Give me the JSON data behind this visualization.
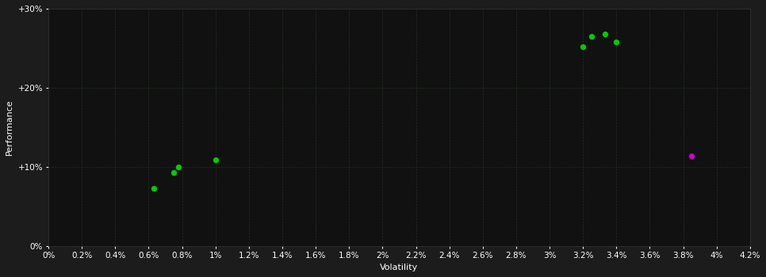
{
  "background_color": "#1c1c1c",
  "plot_bg_color": "#111111",
  "text_color": "#ffffff",
  "xlabel": "Volatility",
  "ylabel": "Performance",
  "xlim": [
    0.0,
    0.042
  ],
  "ylim": [
    0.0,
    0.3
  ],
  "xtick_step": 0.002,
  "ytick_values": [
    0.0,
    0.1,
    0.2,
    0.3
  ],
  "ytick_labels": [
    "0%",
    "+10%",
    "+20%",
    "+30%"
  ],
  "green_points": [
    [
      0.0063,
      0.073
    ],
    [
      0.0075,
      0.093
    ],
    [
      0.0078,
      0.1
    ],
    [
      0.01,
      0.109
    ],
    [
      0.032,
      0.252
    ],
    [
      0.0325,
      0.265
    ],
    [
      0.0333,
      0.268
    ],
    [
      0.034,
      0.258
    ]
  ],
  "magenta_points": [
    [
      0.0385,
      0.114
    ]
  ],
  "green_color": "#00cc00",
  "magenta_color": "#cc00cc",
  "point_size": 28,
  "label_fontsize": 8,
  "tick_fontsize": 7.5
}
